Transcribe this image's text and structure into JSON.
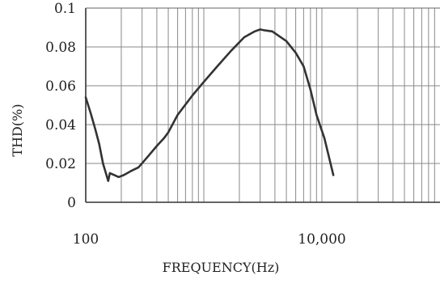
{
  "chart_data": {
    "type": "line",
    "title": "",
    "xlabel": "FREQUENCY(Hz)",
    "ylabel": "THD(%)",
    "x_scale": "log",
    "x_range": [
      100,
      100000
    ],
    "y_range": [
      0,
      0.1
    ],
    "x_tick_labels": [
      {
        "value": 100,
        "label": "100"
      },
      {
        "value": 10000,
        "label": "10,000"
      }
    ],
    "y_tick_labels": [
      {
        "value": 0,
        "label": "0"
      },
      {
        "value": 0.02,
        "label": "0.02"
      },
      {
        "value": 0.04,
        "label": "0.04"
      },
      {
        "value": 0.06,
        "label": "0.06"
      },
      {
        "value": 0.08,
        "label": "0.08"
      },
      {
        "value": 0.1,
        "label": "0.1"
      }
    ],
    "y_gridlines": [
      0,
      0.02,
      0.04,
      0.06,
      0.08,
      0.1
    ],
    "grid": true,
    "series": [
      {
        "color": "#333333",
        "points": [
          [
            100,
            0.054
          ],
          [
            110,
            0.046
          ],
          [
            120,
            0.038
          ],
          [
            130,
            0.03
          ],
          [
            140,
            0.02
          ],
          [
            155,
            0.011
          ],
          [
            160,
            0.015
          ],
          [
            175,
            0.014
          ],
          [
            190,
            0.013
          ],
          [
            210,
            0.014
          ],
          [
            240,
            0.016
          ],
          [
            280,
            0.018
          ],
          [
            330,
            0.023
          ],
          [
            400,
            0.029
          ],
          [
            460,
            0.033
          ],
          [
            500,
            0.036
          ],
          [
            600,
            0.045
          ],
          [
            800,
            0.055
          ],
          [
            1000,
            0.062
          ],
          [
            1300,
            0.07
          ],
          [
            1700,
            0.078
          ],
          [
            2200,
            0.085
          ],
          [
            2700,
            0.088
          ],
          [
            3000,
            0.089
          ],
          [
            3300,
            0.0885
          ],
          [
            3800,
            0.088
          ],
          [
            5000,
            0.083
          ],
          [
            6000,
            0.077
          ],
          [
            7000,
            0.07
          ],
          [
            8000,
            0.058
          ],
          [
            9000,
            0.045
          ],
          [
            10500,
            0.033
          ],
          [
            12500,
            0.014
          ]
        ]
      }
    ]
  }
}
